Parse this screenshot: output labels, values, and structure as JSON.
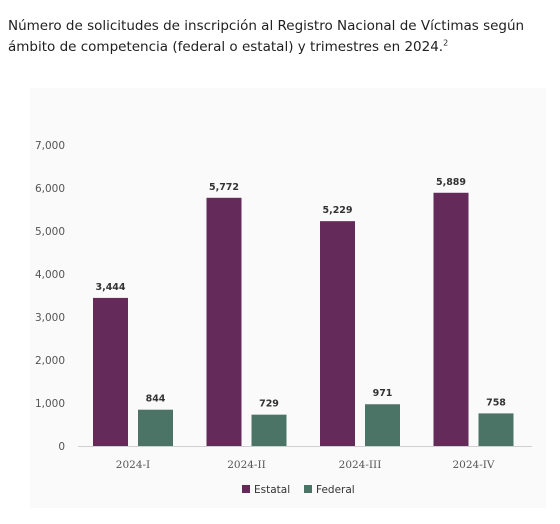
{
  "chart_data": {
    "type": "bar",
    "title": "Número de solicitudes de inscripción al Registro Nacional de Víctimas según ámbito de competencia (federal o estatal) y trimestres en 2024.",
    "title_note": "2",
    "categories": [
      "2024-I",
      "2024-II",
      "2024-III",
      "2024-IV"
    ],
    "series": [
      {
        "name": "Estatal",
        "values": [
          3444,
          5772,
          5229,
          5889
        ],
        "labels": [
          "3,444",
          "5,772",
          "5,229",
          "5,889"
        ],
        "color": "#632a5a"
      },
      {
        "name": "Federal",
        "values": [
          844,
          729,
          971,
          758
        ],
        "labels": [
          "844",
          "729",
          "971",
          "758"
        ],
        "color": "#4b7466"
      }
    ],
    "yticks": [
      "0",
      "1,000",
      "2,000",
      "3,000",
      "4,000",
      "5,000",
      "6,000",
      "7,000"
    ],
    "ylim": [
      0,
      7000
    ],
    "xlabel": "",
    "ylabel": "",
    "grid": false,
    "legend": "bottom"
  }
}
